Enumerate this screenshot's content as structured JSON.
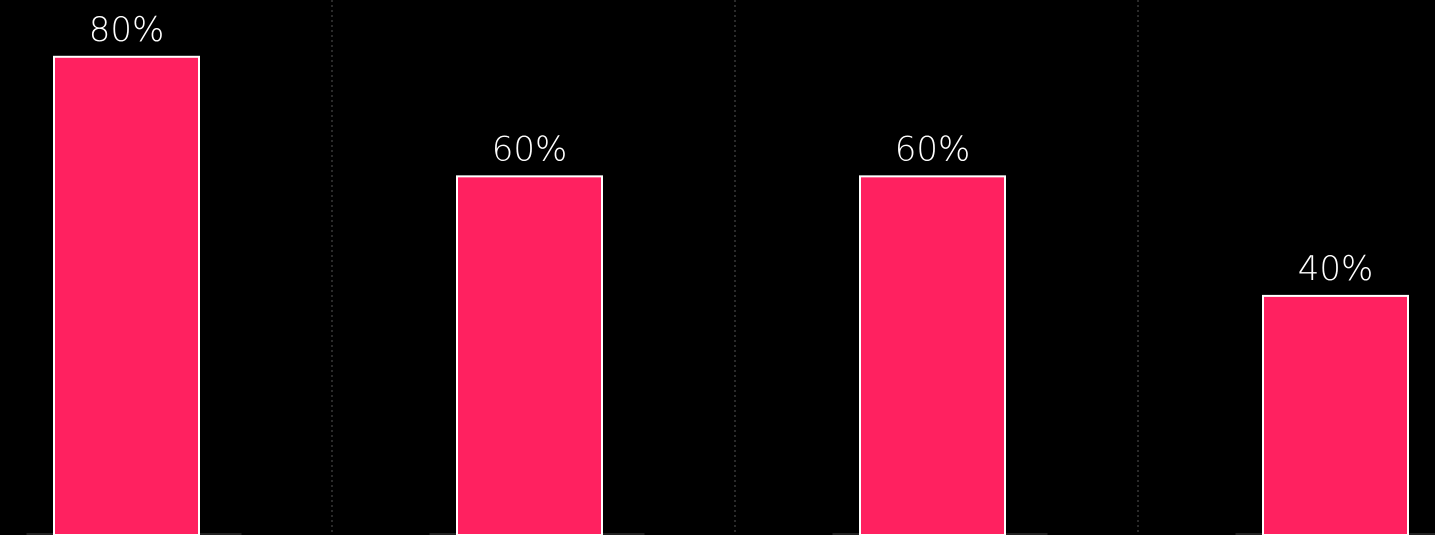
{
  "chart_data": {
    "type": "bar",
    "categories": [
      null,
      null,
      null,
      null
    ],
    "values": [
      80,
      60,
      60,
      40
    ],
    "value_labels": [
      "80%",
      "60%",
      "60%",
      "40%"
    ],
    "color": "#ff2160",
    "ylim": [
      0,
      89.5
    ]
  }
}
